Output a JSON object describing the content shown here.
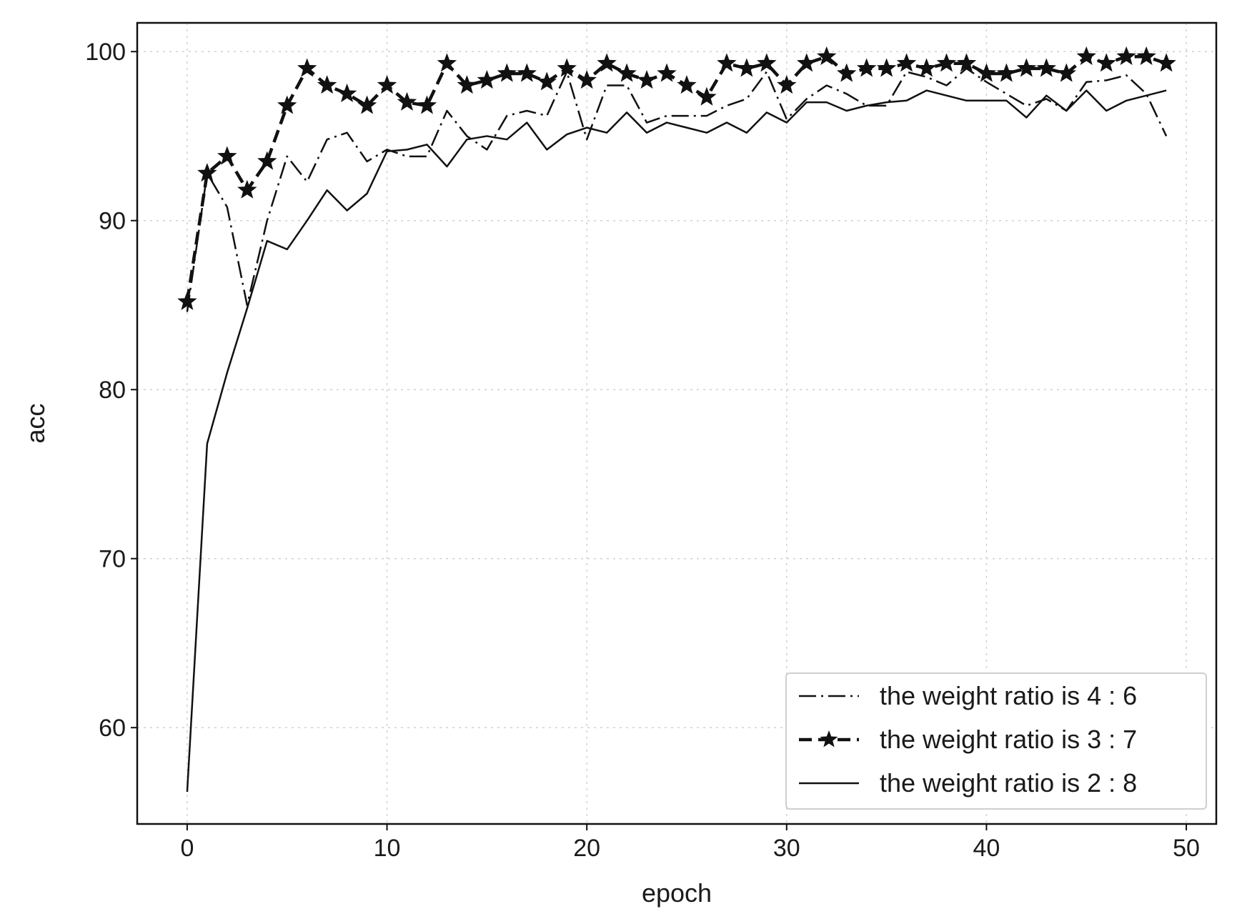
{
  "chart_data": {
    "type": "line",
    "title": "",
    "xlabel": "epoch",
    "ylabel": "acc",
    "xlim": [
      -2.5,
      51.5
    ],
    "ylim": [
      54.3,
      101.7
    ],
    "xticks": [
      0,
      10,
      20,
      30,
      40,
      50
    ],
    "yticks": [
      60,
      70,
      80,
      90,
      100
    ],
    "grid": true,
    "legend_position": "bottom-right",
    "colors": {
      "line": "#111111",
      "grid": "#d0d0d0"
    },
    "x": [
      0,
      1,
      2,
      3,
      4,
      5,
      6,
      7,
      8,
      9,
      10,
      11,
      12,
      13,
      14,
      15,
      16,
      17,
      18,
      19,
      20,
      21,
      22,
      23,
      24,
      25,
      26,
      27,
      28,
      29,
      30,
      31,
      32,
      33,
      34,
      35,
      36,
      37,
      38,
      39,
      40,
      41,
      42,
      43,
      44,
      45,
      46,
      47,
      48,
      49
    ],
    "series": [
      {
        "name": "the weight ratio is 4 : 6",
        "style": "dashdot",
        "marker": "none",
        "values": [
          84.6,
          92.8,
          90.8,
          85.0,
          90.0,
          93.8,
          92.3,
          94.8,
          95.2,
          93.5,
          94.2,
          93.8,
          93.8,
          96.5,
          95.0,
          94.2,
          96.2,
          96.5,
          96.2,
          98.8,
          94.8,
          98.0,
          98.0,
          95.8,
          96.2,
          96.2,
          96.2,
          96.8,
          97.2,
          98.8,
          96.0,
          97.2,
          98.0,
          97.5,
          96.8,
          96.8,
          98.8,
          98.5,
          98.0,
          99.0,
          98.2,
          97.5,
          96.8,
          97.2,
          96.5,
          98.2,
          98.3,
          98.6,
          97.5,
          95.0
        ]
      },
      {
        "name": "the weight ratio is 3 : 7",
        "style": "dashed",
        "marker": "star",
        "values": [
          85.2,
          92.8,
          93.8,
          91.8,
          93.5,
          96.8,
          99.0,
          98.0,
          97.5,
          96.8,
          98.0,
          97.0,
          96.8,
          99.3,
          98.0,
          98.3,
          98.7,
          98.7,
          98.2,
          99.0,
          98.3,
          99.3,
          98.7,
          98.3,
          98.7,
          98.0,
          97.3,
          99.3,
          99.0,
          99.3,
          98.0,
          99.3,
          99.7,
          98.7,
          99.0,
          99.0,
          99.3,
          99.0,
          99.3,
          99.3,
          98.7,
          98.7,
          99.0,
          99.0,
          98.7,
          99.7,
          99.3,
          99.7,
          99.7,
          99.3
        ]
      },
      {
        "name": "the weight ratio is 2 : 8",
        "style": "solid",
        "marker": "none",
        "values": [
          56.2,
          76.8,
          81.0,
          84.8,
          88.8,
          88.3,
          90.0,
          91.8,
          90.6,
          91.6,
          94.1,
          94.2,
          94.5,
          93.2,
          94.8,
          95.0,
          94.8,
          95.8,
          94.2,
          95.1,
          95.5,
          95.2,
          96.4,
          95.2,
          95.8,
          95.5,
          95.2,
          95.8,
          95.2,
          96.4,
          95.8,
          97.0,
          97.0,
          96.5,
          96.8,
          97.0,
          97.1,
          97.7,
          97.4,
          97.1,
          97.1,
          97.1,
          96.1,
          97.4,
          96.5,
          97.7,
          96.5,
          97.1,
          97.4,
          97.7
        ]
      }
    ]
  }
}
